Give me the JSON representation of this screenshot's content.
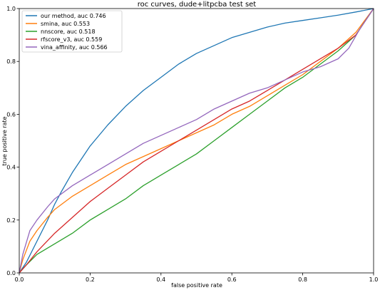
{
  "chart_data": {
    "type": "line",
    "title": "roc curves, dude+litpcba test set",
    "xlabel": "false positive rate",
    "ylabel": "true positive rate",
    "xlim": [
      0.0,
      1.0
    ],
    "ylim": [
      0.0,
      1.0
    ],
    "xticks": [
      "0.0",
      "0.2",
      "0.4",
      "0.6",
      "0.8",
      "1.0"
    ],
    "yticks": [
      "0.0",
      "0.2",
      "0.4",
      "0.6",
      "0.8",
      "1.0"
    ],
    "grid": false,
    "legend_position": "top-left",
    "series": [
      {
        "name": "our method, auc 0.746",
        "color": "#1f77b4",
        "points": [
          [
            0,
            0
          ],
          [
            0.02,
            0.04
          ],
          [
            0.05,
            0.12
          ],
          [
            0.08,
            0.2
          ],
          [
            0.1,
            0.26
          ],
          [
            0.12,
            0.31
          ],
          [
            0.15,
            0.38
          ],
          [
            0.18,
            0.44
          ],
          [
            0.2,
            0.48
          ],
          [
            0.25,
            0.56
          ],
          [
            0.3,
            0.63
          ],
          [
            0.35,
            0.69
          ],
          [
            0.4,
            0.74
          ],
          [
            0.45,
            0.79
          ],
          [
            0.5,
            0.83
          ],
          [
            0.55,
            0.86
          ],
          [
            0.6,
            0.89
          ],
          [
            0.65,
            0.91
          ],
          [
            0.7,
            0.93
          ],
          [
            0.75,
            0.945
          ],
          [
            0.8,
            0.955
          ],
          [
            0.85,
            0.965
          ],
          [
            0.9,
            0.975
          ],
          [
            0.95,
            0.987
          ],
          [
            1.0,
            1.0
          ]
        ]
      },
      {
        "name": "smina, auc 0.553",
        "color": "#ff7f0e",
        "points": [
          [
            0,
            0
          ],
          [
            0.01,
            0.05
          ],
          [
            0.03,
            0.12
          ],
          [
            0.05,
            0.16
          ],
          [
            0.08,
            0.21
          ],
          [
            0.1,
            0.24
          ],
          [
            0.15,
            0.29
          ],
          [
            0.2,
            0.33
          ],
          [
            0.25,
            0.37
          ],
          [
            0.3,
            0.41
          ],
          [
            0.35,
            0.44
          ],
          [
            0.4,
            0.47
          ],
          [
            0.45,
            0.5
          ],
          [
            0.5,
            0.53
          ],
          [
            0.55,
            0.56
          ],
          [
            0.6,
            0.6
          ],
          [
            0.65,
            0.63
          ],
          [
            0.7,
            0.67
          ],
          [
            0.75,
            0.71
          ],
          [
            0.8,
            0.75
          ],
          [
            0.85,
            0.8
          ],
          [
            0.9,
            0.85
          ],
          [
            0.95,
            0.91
          ],
          [
            1.0,
            1.0
          ]
        ]
      },
      {
        "name": "nnscore, auc 0.518",
        "color": "#2ca02c",
        "points": [
          [
            0,
            0
          ],
          [
            0.02,
            0.03
          ],
          [
            0.05,
            0.07
          ],
          [
            0.1,
            0.11
          ],
          [
            0.15,
            0.15
          ],
          [
            0.2,
            0.2
          ],
          [
            0.25,
            0.24
          ],
          [
            0.3,
            0.28
          ],
          [
            0.35,
            0.33
          ],
          [
            0.4,
            0.37
          ],
          [
            0.45,
            0.41
          ],
          [
            0.5,
            0.45
          ],
          [
            0.55,
            0.5
          ],
          [
            0.6,
            0.55
          ],
          [
            0.65,
            0.6
          ],
          [
            0.7,
            0.65
          ],
          [
            0.75,
            0.7
          ],
          [
            0.8,
            0.74
          ],
          [
            0.85,
            0.79
          ],
          [
            0.9,
            0.84
          ],
          [
            0.95,
            0.9
          ],
          [
            1.0,
            1.0
          ]
        ]
      },
      {
        "name": "rfscore_v3, auc 0.559",
        "color": "#d62728",
        "points": [
          [
            0,
            0
          ],
          [
            0.02,
            0.03
          ],
          [
            0.05,
            0.08
          ],
          [
            0.1,
            0.15
          ],
          [
            0.15,
            0.21
          ],
          [
            0.2,
            0.27
          ],
          [
            0.25,
            0.32
          ],
          [
            0.3,
            0.37
          ],
          [
            0.35,
            0.42
          ],
          [
            0.4,
            0.46
          ],
          [
            0.45,
            0.5
          ],
          [
            0.5,
            0.54
          ],
          [
            0.55,
            0.58
          ],
          [
            0.6,
            0.62
          ],
          [
            0.65,
            0.65
          ],
          [
            0.7,
            0.69
          ],
          [
            0.75,
            0.73
          ],
          [
            0.8,
            0.77
          ],
          [
            0.85,
            0.81
          ],
          [
            0.9,
            0.85
          ],
          [
            0.95,
            0.9
          ],
          [
            1.0,
            1.0
          ]
        ]
      },
      {
        "name": "vina_affinity, auc 0.566",
        "color": "#9467bd",
        "points": [
          [
            0,
            0
          ],
          [
            0.01,
            0.07
          ],
          [
            0.03,
            0.16
          ],
          [
            0.05,
            0.2
          ],
          [
            0.08,
            0.25
          ],
          [
            0.1,
            0.28
          ],
          [
            0.15,
            0.33
          ],
          [
            0.2,
            0.37
          ],
          [
            0.25,
            0.41
          ],
          [
            0.3,
            0.45
          ],
          [
            0.35,
            0.49
          ],
          [
            0.4,
            0.52
          ],
          [
            0.45,
            0.55
          ],
          [
            0.5,
            0.58
          ],
          [
            0.55,
            0.62
          ],
          [
            0.6,
            0.65
          ],
          [
            0.65,
            0.68
          ],
          [
            0.7,
            0.7
          ],
          [
            0.75,
            0.73
          ],
          [
            0.8,
            0.76
          ],
          [
            0.85,
            0.78
          ],
          [
            0.9,
            0.81
          ],
          [
            0.93,
            0.85
          ],
          [
            0.96,
            0.92
          ],
          [
            1.0,
            1.0
          ]
        ]
      }
    ]
  }
}
